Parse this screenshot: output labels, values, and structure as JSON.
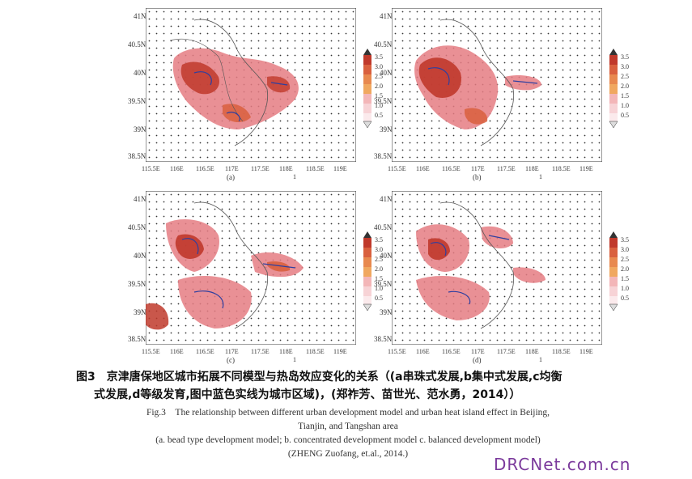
{
  "latitudes": [
    "41N",
    "40.5N",
    "40N",
    "39.5N",
    "39N",
    "38.5N"
  ],
  "longitudes": [
    "115.5E",
    "116E",
    "116.5E",
    "117E",
    "117.5E",
    "118E",
    "118.5E",
    "119E"
  ],
  "colorbar_ticks": [
    "3.5",
    "3.0",
    "2.5",
    "2.0",
    "1.5",
    "1.0",
    "0.5"
  ],
  "colorbar_colors": [
    "#c0392b",
    "#d9603e",
    "#e8894f",
    "#f0a860",
    "#f3b6b8",
    "#f7d3d6",
    "#fbeaec"
  ],
  "panels": [
    {
      "label": "(a)",
      "vector_ref": "1"
    },
    {
      "label": "(b)",
      "vector_ref": "1"
    },
    {
      "label": "(c)",
      "vector_ref": "1"
    },
    {
      "label": "(d)",
      "vector_ref": "1"
    }
  ],
  "caption": {
    "cn_line1": "图3　京津唐保地区城市拓展不同模型与热岛效应变化的关系（(a串珠式发展,b集中式发展,c均衡",
    "cn_line2": "式发展,d等级发育,图中蓝色实线为城市区域)，(郑祚芳、苗世光、范水勇，2014））",
    "en_line1": "Fig.3　The relationship between different urban development model and urban heat island effect in Beijing,",
    "en_line2": "Tianjin, and Tangshan area",
    "en_line3": "(a. bead type development model; b. concentrated development model c. balanced development model)",
    "en_line4": "(ZHENG Zuofang, et.al., 2014.)"
  },
  "watermark": "DRCNet.com.cn"
}
